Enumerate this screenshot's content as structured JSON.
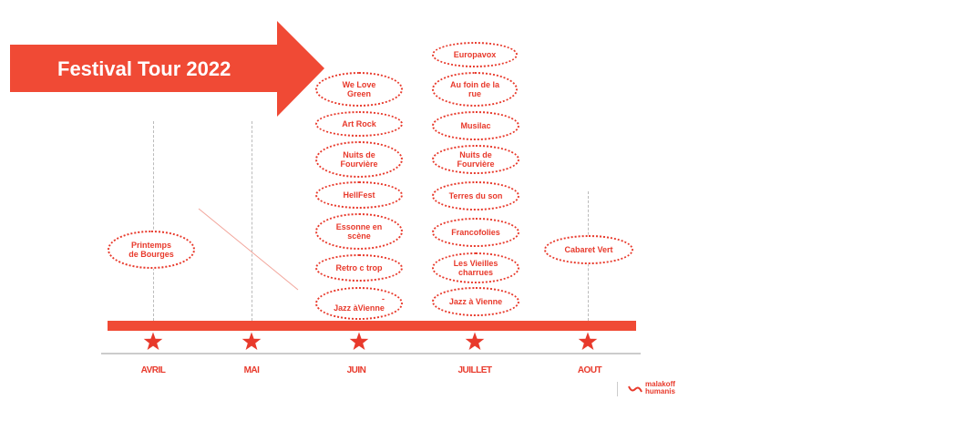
{
  "title": "Festival Tour 2022",
  "colors": {
    "accent": "#e8392b",
    "bar": "#f04a35",
    "guide": "#bbbbbb"
  },
  "months": [
    "AVRIL",
    "MAI",
    "JUIN",
    "JUILLET",
    "AOUT"
  ],
  "festivals": {
    "avril": [
      "Printemps\nde Bourges"
    ],
    "juin": [
      "We Love\nGreen",
      "Art Rock",
      "Nuits de\nFourvière",
      "HellFest",
      "Essonne en\nscène",
      "Retro c trop",
      "-\nJazz àVienne"
    ],
    "juillet": [
      "Europavox",
      "Au foin de la\nrue",
      "Musilac",
      "Nuits de\nFourvière",
      "Terres du son",
      "Francofolies",
      "Les Vieilles\ncharrues",
      "Jazz à Vienne"
    ],
    "aout": [
      "Cabaret Vert"
    ]
  },
  "logo": {
    "line1": "malakoff",
    "line2": "humanis"
  }
}
